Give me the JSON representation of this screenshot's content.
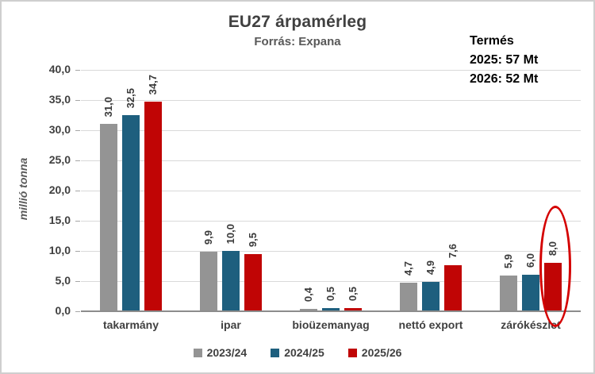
{
  "title": "EU27 árpamérleg",
  "subtitle": "Forrás: Expana",
  "annotation": {
    "heading": "Termés",
    "lines": [
      "2025: 57 Mt",
      "2026: 52 Mt"
    ]
  },
  "chart_data": {
    "type": "bar",
    "title": "EU27 árpamérleg",
    "subtitle": "Forrás: Expana",
    "categories": [
      "takarmány",
      "ipar",
      "bioüzemanyag",
      "nettó export",
      "zárókészlet"
    ],
    "series": [
      {
        "name": "2023/24",
        "color": "#949494",
        "values": [
          31.0,
          9.9,
          0.4,
          4.7,
          5.9
        ]
      },
      {
        "name": "2024/25",
        "color": "#1e5f7e",
        "values": [
          32.5,
          10.0,
          0.5,
          4.9,
          6.0
        ]
      },
      {
        "name": "2025/26",
        "color": "#c00505",
        "values": [
          34.7,
          9.5,
          0.5,
          7.6,
          8.0
        ]
      }
    ],
    "xlabel": "",
    "ylabel": "millió tonna",
    "ylim": [
      0,
      40
    ],
    "ytick_step": 5,
    "grid": true,
    "legend_position": "bottom",
    "decimal_separator": ",",
    "value_labels": true,
    "highlight": {
      "category": "zárókészlet",
      "series": "2025/26",
      "shape": "ellipse",
      "color": "#d40000"
    }
  }
}
